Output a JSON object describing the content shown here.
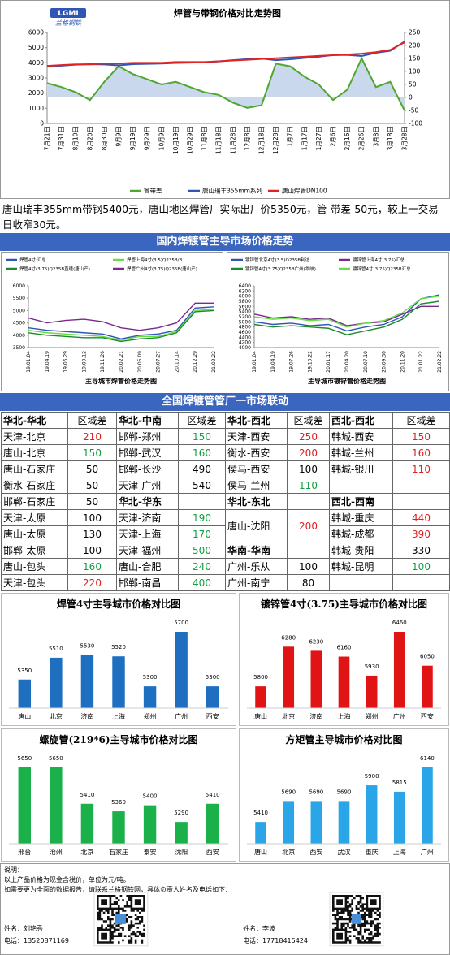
{
  "logo": {
    "mark": "LGMI",
    "name": "兰格钢铁"
  },
  "trend_chart": {
    "type": "line",
    "title": "焊管与带钢价格对比走势图",
    "categories": [
      "7月21日",
      "7月31日",
      "8月10日",
      "8月20日",
      "8月30日",
      "9月9日",
      "9月19日",
      "9月29日",
      "10月9日",
      "10月19日",
      "10月29日",
      "11月8日",
      "11月18日",
      "11月28日",
      "12月8日",
      "12月18日",
      "12月28日",
      "1月7日",
      "1月17日",
      "1月27日",
      "2月6日",
      "2月16日",
      "2月26日",
      "3月8日",
      "3月18日",
      "3月28日"
    ],
    "series": [
      {
        "name": "管带差",
        "color": "#4ea72e",
        "fill_color": "#c9d8ec",
        "axis": "y2",
        "values": [
          55,
          40,
          20,
          -10,
          60,
          120,
          90,
          70,
          50,
          60,
          40,
          20,
          10,
          -20,
          -40,
          -30,
          130,
          120,
          80,
          50,
          -10,
          30,
          150,
          40,
          60,
          -50
        ]
      },
      {
        "name": "唐山瑞丰355mm系列",
        "color": "#2f55b5",
        "values": [
          3745,
          3810,
          3880,
          3910,
          3890,
          3830,
          3910,
          3930,
          3950,
          3990,
          4010,
          4030,
          4090,
          4170,
          4240,
          4280,
          4170,
          4230,
          4320,
          4400,
          4510,
          4520,
          4450,
          4660,
          4790,
          5400
        ]
      },
      {
        "name": "唐山焊管DN100",
        "color": "#e02424",
        "values": [
          3800,
          3850,
          3900,
          3900,
          3950,
          3950,
          4000,
          4000,
          4000,
          4050,
          4050,
          4050,
          4100,
          4150,
          4200,
          4250,
          4300,
          4350,
          4400,
          4450,
          4500,
          4550,
          4600,
          4700,
          4850,
          5350
        ]
      }
    ],
    "ylim": [
      0,
      6000
    ],
    "yticks": [
      0,
      1000,
      2000,
      3000,
      4000,
      5000,
      6000
    ],
    "y2lim": [
      -100,
      250
    ],
    "y2ticks": [
      -100,
      -50,
      0,
      50,
      100,
      150,
      200,
      250
    ],
    "grid": false
  },
  "summary": "唐山瑞丰355mm带钢5400元，唐山地区焊管厂实际出厂价5350元，管-带差-50元，较上一交易日收窄30元。",
  "section1_title": "国内焊镀管主导市场价格走势",
  "weld_chart": {
    "type": "line",
    "title": "主导城市焊管价格走势图",
    "categories": [
      "19.01.04",
      "19.04.19",
      "19.06.29",
      "19.09.12",
      "19.11.26",
      "20.02.21",
      "20.05.09",
      "20.07.27",
      "20.10.14",
      "20.12.29",
      "21.02.22"
    ],
    "series": [
      {
        "name": "焊管4寸:汇总",
        "color": "#2f55b5",
        "values": [
          4300,
          4200,
          4150,
          4100,
          4050,
          3850,
          4000,
          4050,
          4200,
          5100,
          5150
        ]
      },
      {
        "name": "焊管上海4寸(3.5)Q235B/B",
        "color": "#66dd44",
        "values": [
          4200,
          4100,
          4050,
          4000,
          3950,
          3800,
          3950,
          3950,
          4150,
          5000,
          5050
        ]
      },
      {
        "name": "焊管4寸(3.75)Q235B直缝(唐山产)",
        "color": "#1c8a2c",
        "values": [
          4100,
          4000,
          3950,
          3900,
          3900,
          3750,
          3850,
          3900,
          4100,
          4950,
          5000
        ]
      },
      {
        "name": "焊管广州4寸(3.75)Q235B(唐山产)",
        "color": "#7a2a8c",
        "values": [
          4700,
          4500,
          4600,
          4650,
          4550,
          4300,
          4200,
          4300,
          4500,
          5300,
          5300
        ]
      }
    ],
    "ylim": [
      3500,
      6000
    ],
    "yticks": [
      3500,
      4000,
      4500,
      5000,
      5500,
      6000
    ],
    "grid": false
  },
  "galv_chart": {
    "type": "line",
    "title": "主导城市镀锌管价格走势图",
    "categories": [
      "19.01.04",
      "19.04.19",
      "19.07.26",
      "19.10.22",
      "20.01.17",
      "20.04.20",
      "20.07.10",
      "20.09.30",
      "20.11.20",
      "21.01.22",
      "21.02.22"
    ],
    "series": [
      {
        "name": "镀锌管北京4寸(3.5)Q235B利达",
        "color": "#2f55b5",
        "values": [
          5000,
          4900,
          4950,
          4850,
          4900,
          4650,
          4800,
          4900,
          5200,
          5900,
          6050
        ]
      },
      {
        "name": "镀锌管上海4寸(3.75)汇总",
        "color": "#7a2a8c",
        "values": [
          5300,
          5150,
          5200,
          5100,
          5150,
          4850,
          4950,
          5000,
          5300,
          5600,
          5600
        ]
      },
      {
        "name": "镀锌管4寸(3.75)Q235B广州(华岐)",
        "color": "#1c8a2c",
        "values": [
          4900,
          4800,
          4850,
          4800,
          4750,
          4500,
          4650,
          4800,
          5100,
          5700,
          5800
        ]
      },
      {
        "name": "镀锌管4寸(3.75)Q235B汇总",
        "color": "#66dd44",
        "values": [
          5200,
          5100,
          5150,
          5050,
          5100,
          4800,
          4950,
          5050,
          5350,
          5900,
          6000
        ]
      }
    ],
    "ylim": [
      4000,
      6400
    ],
    "yticks": [
      4000,
      4200,
      4400,
      4600,
      4800,
      5000,
      5200,
      5400,
      5600,
      5800,
      6000,
      6200,
      6400
    ],
    "grid": false
  },
  "section2_title": "全国焊镀管管厂一市场联动",
  "table": {
    "rows": [
      [
        {
          "text": "华北-华北",
          "bold": true
        },
        "区域差",
        {
          "text": "华北-中南",
          "bold": true
        },
        "区域差",
        {
          "text": "华北-西北",
          "bold": true
        },
        "区域差",
        {
          "text": "西北-西北",
          "bold": true
        },
        "区域差"
      ],
      [
        "天津-北京",
        {
          "text": "210",
          "color": "#e02020"
        },
        "邯郸-郑州",
        {
          "text": "150",
          "color": "#10a040"
        },
        "天津-西安",
        {
          "text": "250",
          "color": "#e02020"
        },
        "韩城-西安",
        {
          "text": "150",
          "color": "#e02020"
        }
      ],
      [
        "唐山-北京",
        {
          "text": "150",
          "color": "#10a040"
        },
        "邯郸-武汉",
        {
          "text": "160",
          "color": "#10a040"
        },
        "衡水-西安",
        {
          "text": "200",
          "color": "#e02020"
        },
        "韩城-兰州",
        {
          "text": "160",
          "color": "#e02020"
        }
      ],
      [
        "唐山-石家庄",
        "50",
        "邯郸-长沙",
        "490",
        "侯马-西安",
        "100",
        "韩城-银川",
        {
          "text": "110",
          "color": "#e02020"
        }
      ],
      [
        "衡水-石家庄",
        "50",
        "天津-广州",
        "540",
        "侯马-兰州",
        {
          "text": "110",
          "color": "#10a040"
        },
        null,
        null
      ],
      [
        "邯郸-石家庄",
        "50",
        {
          "text": "华北-华东",
          "bold": true
        },
        null,
        {
          "text": "华北-东北",
          "bold": true
        },
        null,
        {
          "text": "西北-西南",
          "bold": true
        },
        null
      ],
      [
        "天津-太原",
        "100",
        "天津-济南",
        {
          "text": "190",
          "color": "#10a040"
        },
        {
          "text": "唐山-沈阳",
          "rowspan": 2
        },
        {
          "text": "200",
          "color": "#e02020",
          "rowspan": 2
        },
        "韩城-重庆",
        {
          "text": "440",
          "color": "#e02020"
        }
      ],
      [
        "唐山-太原",
        "130",
        "天津-上海",
        {
          "text": "170",
          "color": "#10a040"
        },
        "韩城-成都",
        {
          "text": "390",
          "color": "#e02020"
        }
      ],
      [
        "邯郸-太原",
        "100",
        "天津-福州",
        {
          "text": "500",
          "color": "#10a040"
        },
        {
          "text": "华南-华南",
          "bold": true
        },
        null,
        "韩城-贵阳",
        "330"
      ],
      [
        "唐山-包头",
        {
          "text": "160",
          "color": "#10a040"
        },
        "唐山-合肥",
        {
          "text": "240",
          "color": "#10a040"
        },
        "广州-乐从",
        "100",
        "韩城-昆明",
        {
          "text": "100",
          "color": "#10a040"
        }
      ],
      [
        "天津-包头",
        {
          "text": "220",
          "color": "#e02020"
        },
        "邯郸-南昌",
        {
          "text": "400",
          "color": "#10a040"
        },
        "广州-南宁",
        "80",
        null,
        null
      ]
    ]
  },
  "bar_charts": [
    {
      "type": "bar",
      "title": "焊管4寸主导城市价格对比图",
      "color": "#1f6fc0",
      "categories": [
        "唐山",
        "北京",
        "济南",
        "上海",
        "郑州",
        "广州",
        "西安"
      ],
      "values": [
        5350,
        5510,
        5530,
        5520,
        5300,
        5700,
        5300
      ]
    },
    {
      "type": "bar",
      "title": "镀锌管4寸(3.75)主导城市价格对比图",
      "color": "#e01414",
      "categories": [
        "唐山",
        "北京",
        "济南",
        "上海",
        "郑州",
        "广州",
        "西安"
      ],
      "values": [
        5800,
        6280,
        6230,
        6160,
        5930,
        6460,
        6050
      ]
    },
    {
      "type": "bar",
      "title": "螺旋管(219*6)主导城市价格对比图",
      "color": "#1ab04a",
      "categories": [
        "邢台",
        "沧州",
        "北京",
        "石家庄",
        "泰安",
        "沈阳",
        "西安"
      ],
      "values": [
        5650,
        5650,
        5410,
        5360,
        5400,
        5290,
        5410
      ]
    },
    {
      "type": "bar",
      "title": "方矩管主导城市价格对比图",
      "color": "#2aa6e8",
      "categories": [
        "唐山",
        "北京",
        "西安",
        "武汉",
        "重庆",
        "上海",
        "广州"
      ],
      "values": [
        5410,
        5690,
        5690,
        5690,
        5900,
        5815,
        6140
      ]
    }
  ],
  "footer": {
    "lines": [
      "说明：",
      "以上产品价格为现金含税价，单位为元/吨。",
      "如需要更为全面的数据报告，请联系兰格钢铁网，具体负责人姓名及电话如下："
    ],
    "contacts": [
      {
        "name": "姓名：刘艳秀",
        "phone": "电话：13520871169"
      },
      {
        "name": "姓名：李波",
        "phone": "电话：17718415424"
      }
    ]
  }
}
